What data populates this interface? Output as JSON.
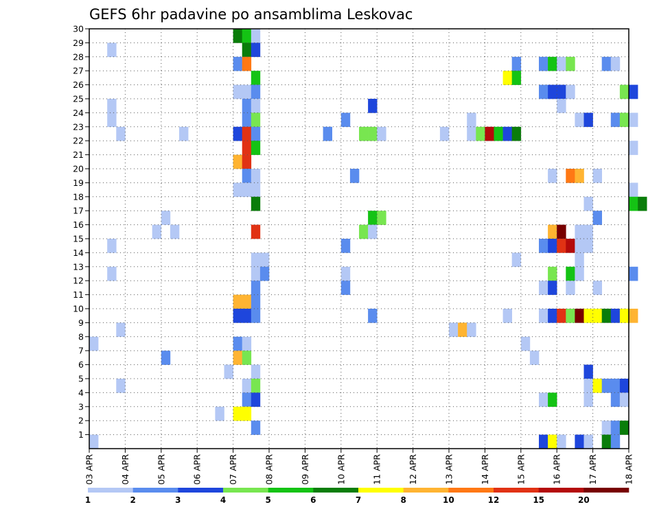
{
  "chart_data": {
    "type": "heatmap",
    "title": "GEFS 6hr padavine po ansamblima Leskovac",
    "xlabel": "",
    "ylabel": "",
    "x_ticks": [
      "03 APR",
      "04 APR",
      "05 APR",
      "06 APR",
      "07 APR",
      "08 APR",
      "09 APR",
      "10 APR",
      "11 APR",
      "12 APR",
      "13 APR",
      "14 APR",
      "15 APR",
      "16 APR",
      "17 APR",
      "18 APR"
    ],
    "y_ticks": [
      "1",
      "2",
      "3",
      "4",
      "5",
      "6",
      "7",
      "8",
      "9",
      "10",
      "11",
      "12",
      "13",
      "14",
      "15",
      "16",
      "17",
      "18",
      "19",
      "20",
      "21",
      "22",
      "23",
      "24",
      "25",
      "26",
      "27",
      "28",
      "29",
      "30"
    ],
    "x_range": [
      "03 APR 00z",
      "18 APR 00z"
    ],
    "x_step_hours": 6,
    "y_range": [
      0,
      30
    ],
    "grid": true,
    "legend_placement": "bottom",
    "legend": {
      "labels": [
        "1",
        "2",
        "3",
        "4",
        "5",
        "6",
        "7",
        "8",
        "10",
        "12",
        "15",
        "20"
      ],
      "colors": [
        "#b4c8f5",
        "#5a8cee",
        "#1e46dc",
        "#78e650",
        "#14c314",
        "#0a7d0a",
        "#ffff00",
        "#ffb432",
        "#ff7814",
        "#e13214",
        "#b40a0a",
        "#780000"
      ]
    },
    "cells": [
      {
        "member": 30,
        "t": "07 APR 00z",
        "level": 6
      },
      {
        "member": 30,
        "t": "07 APR 06z",
        "level": 5
      },
      {
        "member": 30,
        "t": "07 APR 12z",
        "level": 1
      },
      {
        "member": 29,
        "t": "03 APR 12z",
        "level": 1
      },
      {
        "member": 29,
        "t": "07 APR 06z",
        "level": 6
      },
      {
        "member": 29,
        "t": "07 APR 12z",
        "level": 3
      },
      {
        "member": 28,
        "t": "07 APR 00z",
        "level": 2
      },
      {
        "member": 28,
        "t": "07 APR 06z",
        "level": 9
      },
      {
        "member": 28,
        "t": "14 APR 18z",
        "level": 2
      },
      {
        "member": 28,
        "t": "15 APR 12z",
        "level": 2
      },
      {
        "member": 28,
        "t": "15 APR 18z",
        "level": 5
      },
      {
        "member": 28,
        "t": "16 APR 00z",
        "level": 1
      },
      {
        "member": 28,
        "t": "16 APR 06z",
        "level": 4
      },
      {
        "member": 28,
        "t": "17 APR 06z",
        "level": 2
      },
      {
        "member": 28,
        "t": "17 APR 12z",
        "level": 1
      },
      {
        "member": 27,
        "t": "07 APR 12z",
        "level": 5
      },
      {
        "member": 27,
        "t": "14 APR 12z",
        "level": 7
      },
      {
        "member": 27,
        "t": "14 APR 18z",
        "level": 5
      },
      {
        "member": 26,
        "t": "07 APR 00z",
        "level": 1
      },
      {
        "member": 26,
        "t": "07 APR 06z",
        "level": 1
      },
      {
        "member": 26,
        "t": "07 APR 12z",
        "level": 2
      },
      {
        "member": 26,
        "t": "15 APR 12z",
        "level": 2
      },
      {
        "member": 26,
        "t": "15 APR 18z",
        "level": 3
      },
      {
        "member": 26,
        "t": "16 APR 00z",
        "level": 3
      },
      {
        "member": 26,
        "t": "16 APR 06z",
        "level": 1
      },
      {
        "member": 26,
        "t": "17 APR 18z",
        "level": 4
      },
      {
        "member": 26,
        "t": "18 APR 00z",
        "level": 3
      },
      {
        "member": 25,
        "t": "03 APR 12z",
        "level": 1
      },
      {
        "member": 25,
        "t": "07 APR 06z",
        "level": 2
      },
      {
        "member": 25,
        "t": "07 APR 12z",
        "level": 1
      },
      {
        "member": 25,
        "t": "10 APR 18z",
        "level": 3
      },
      {
        "member": 25,
        "t": "16 APR 00z",
        "level": 1
      },
      {
        "member": 24,
        "t": "03 APR 12z",
        "level": 1
      },
      {
        "member": 24,
        "t": "07 APR 06z",
        "level": 2
      },
      {
        "member": 24,
        "t": "07 APR 12z",
        "level": 4
      },
      {
        "member": 24,
        "t": "10 APR 00z",
        "level": 2
      },
      {
        "member": 24,
        "t": "13 APR 12z",
        "level": 1
      },
      {
        "member": 24,
        "t": "16 APR 12z",
        "level": 1
      },
      {
        "member": 24,
        "t": "16 APR 18z",
        "level": 3
      },
      {
        "member": 24,
        "t": "17 APR 12z",
        "level": 2
      },
      {
        "member": 24,
        "t": "17 APR 18z",
        "level": 4
      },
      {
        "member": 24,
        "t": "18 APR 00z",
        "level": 1
      },
      {
        "member": 23,
        "t": "03 APR 18z",
        "level": 1
      },
      {
        "member": 23,
        "t": "05 APR 12z",
        "level": 1
      },
      {
        "member": 23,
        "t": "07 APR 00z",
        "level": 3
      },
      {
        "member": 23,
        "t": "07 APR 06z",
        "level": 10
      },
      {
        "member": 23,
        "t": "07 APR 12z",
        "level": 2
      },
      {
        "member": 23,
        "t": "09 APR 12z",
        "level": 2
      },
      {
        "member": 23,
        "t": "10 APR 12z",
        "level": 4
      },
      {
        "member": 23,
        "t": "10 APR 18z",
        "level": 4
      },
      {
        "member": 23,
        "t": "11 APR 00z",
        "level": 1
      },
      {
        "member": 23,
        "t": "12 APR 18z",
        "level": 1
      },
      {
        "member": 23,
        "t": "13 APR 12z",
        "level": 1
      },
      {
        "member": 23,
        "t": "13 APR 18z",
        "level": 4
      },
      {
        "member": 23,
        "t": "14 APR 00z",
        "level": 11
      },
      {
        "member": 23,
        "t": "14 APR 06z",
        "level": 5
      },
      {
        "member": 23,
        "t": "14 APR 12z",
        "level": 3
      },
      {
        "member": 23,
        "t": "14 APR 18z",
        "level": 6
      },
      {
        "member": 22,
        "t": "07 APR 06z",
        "level": 10
      },
      {
        "member": 22,
        "t": "07 APR 12z",
        "level": 5
      },
      {
        "member": 22,
        "t": "18 APR 00z",
        "level": 1
      },
      {
        "member": 21,
        "t": "07 APR 00z",
        "level": 8
      },
      {
        "member": 21,
        "t": "07 APR 06z",
        "level": 10
      },
      {
        "member": 20,
        "t": "07 APR 06z",
        "level": 2
      },
      {
        "member": 20,
        "t": "07 APR 12z",
        "level": 1
      },
      {
        "member": 20,
        "t": "10 APR 06z",
        "level": 2
      },
      {
        "member": 20,
        "t": "15 APR 18z",
        "level": 1
      },
      {
        "member": 20,
        "t": "16 APR 06z",
        "level": 9
      },
      {
        "member": 20,
        "t": "16 APR 12z",
        "level": 8
      },
      {
        "member": 20,
        "t": "17 APR 00z",
        "level": 1
      },
      {
        "member": 19,
        "t": "07 APR 00z",
        "level": 1
      },
      {
        "member": 19,
        "t": "07 APR 06z",
        "level": 1
      },
      {
        "member": 19,
        "t": "07 APR 12z",
        "level": 1
      },
      {
        "member": 19,
        "t": "18 APR 00z",
        "level": 1
      },
      {
        "member": 18,
        "t": "07 APR 12z",
        "level": 6
      },
      {
        "member": 18,
        "t": "16 APR 18z",
        "level": 1
      },
      {
        "member": 18,
        "t": "18 APR 00z",
        "level": 5
      },
      {
        "member": 18,
        "t": "18 APR 06z",
        "level": 6
      },
      {
        "member": 17,
        "t": "05 APR 00z",
        "level": 1
      },
      {
        "member": 17,
        "t": "10 APR 18z",
        "level": 5
      },
      {
        "member": 17,
        "t": "11 APR 00z",
        "level": 4
      },
      {
        "member": 17,
        "t": "17 APR 00z",
        "level": 2
      },
      {
        "member": 16,
        "t": "04 APR 18z",
        "level": 1
      },
      {
        "member": 16,
        "t": "05 APR 06z",
        "level": 1
      },
      {
        "member": 16,
        "t": "07 APR 12z",
        "level": 10
      },
      {
        "member": 16,
        "t": "10 APR 12z",
        "level": 4
      },
      {
        "member": 16,
        "t": "10 APR 18z",
        "level": 1
      },
      {
        "member": 16,
        "t": "15 APR 18z",
        "level": 8
      },
      {
        "member": 16,
        "t": "16 APR 00z",
        "level": 12
      },
      {
        "member": 16,
        "t": "16 APR 12z",
        "level": 1
      },
      {
        "member": 16,
        "t": "16 APR 18z",
        "level": 1
      },
      {
        "member": 15,
        "t": "03 APR 12z",
        "level": 1
      },
      {
        "member": 15,
        "t": "10 APR 00z",
        "level": 2
      },
      {
        "member": 15,
        "t": "15 APR 12z",
        "level": 2
      },
      {
        "member": 15,
        "t": "15 APR 18z",
        "level": 3
      },
      {
        "member": 15,
        "t": "16 APR 00z",
        "level": 10
      },
      {
        "member": 15,
        "t": "16 APR 06z",
        "level": 11
      },
      {
        "member": 15,
        "t": "16 APR 12z",
        "level": 1
      },
      {
        "member": 15,
        "t": "16 APR 18z",
        "level": 1
      },
      {
        "member": 14,
        "t": "07 APR 12z",
        "level": 1
      },
      {
        "member": 14,
        "t": "07 APR 18z",
        "level": 1
      },
      {
        "member": 14,
        "t": "14 APR 18z",
        "level": 1
      },
      {
        "member": 14,
        "t": "16 APR 12z",
        "level": 1
      },
      {
        "member": 13,
        "t": "03 APR 12z",
        "level": 1
      },
      {
        "member": 13,
        "t": "07 APR 12z",
        "level": 1
      },
      {
        "member": 13,
        "t": "07 APR 18z",
        "level": 2
      },
      {
        "member": 13,
        "t": "10 APR 00z",
        "level": 1
      },
      {
        "member": 13,
        "t": "15 APR 18z",
        "level": 4
      },
      {
        "member": 13,
        "t": "16 APR 06z",
        "level": 5
      },
      {
        "member": 13,
        "t": "16 APR 12z",
        "level": 1
      },
      {
        "member": 13,
        "t": "18 APR 00z",
        "level": 2
      },
      {
        "member": 12,
        "t": "07 APR 12z",
        "level": 2
      },
      {
        "member": 12,
        "t": "10 APR 00z",
        "level": 2
      },
      {
        "member": 12,
        "t": "15 APR 12z",
        "level": 1
      },
      {
        "member": 12,
        "t": "15 APR 18z",
        "level": 3
      },
      {
        "member": 12,
        "t": "16 APR 06z",
        "level": 1
      },
      {
        "member": 12,
        "t": "17 APR 00z",
        "level": 1
      },
      {
        "member": 11,
        "t": "07 APR 00z",
        "level": 8
      },
      {
        "member": 11,
        "t": "07 APR 06z",
        "level": 8
      },
      {
        "member": 11,
        "t": "07 APR 12z",
        "level": 2
      },
      {
        "member": 10,
        "t": "07 APR 00z",
        "level": 3
      },
      {
        "member": 10,
        "t": "07 APR 06z",
        "level": 3
      },
      {
        "member": 10,
        "t": "07 APR 12z",
        "level": 2
      },
      {
        "member": 10,
        "t": "10 APR 18z",
        "level": 2
      },
      {
        "member": 10,
        "t": "14 APR 12z",
        "level": 1
      },
      {
        "member": 10,
        "t": "15 APR 12z",
        "level": 1
      },
      {
        "member": 10,
        "t": "15 APR 18z",
        "level": 3
      },
      {
        "member": 10,
        "t": "16 APR 00z",
        "level": 10
      },
      {
        "member": 10,
        "t": "16 APR 06z",
        "level": 4
      },
      {
        "member": 10,
        "t": "16 APR 12z",
        "level": 12
      },
      {
        "member": 10,
        "t": "16 APR 18z",
        "level": 7
      },
      {
        "member": 10,
        "t": "17 APR 00z",
        "level": 7
      },
      {
        "member": 10,
        "t": "17 APR 06z",
        "level": 6
      },
      {
        "member": 10,
        "t": "17 APR 12z",
        "level": 3
      },
      {
        "member": 10,
        "t": "17 APR 18z",
        "level": 7
      },
      {
        "member": 10,
        "t": "18 APR 00z",
        "level": 8
      },
      {
        "member": 9,
        "t": "03 APR 18z",
        "level": 1
      },
      {
        "member": 9,
        "t": "13 APR 00z",
        "level": 1
      },
      {
        "member": 9,
        "t": "13 APR 06z",
        "level": 8
      },
      {
        "member": 9,
        "t": "13 APR 12z",
        "level": 1
      },
      {
        "member": 8,
        "t": "03 APR 00z",
        "level": 1
      },
      {
        "member": 8,
        "t": "07 APR 00z",
        "level": 2
      },
      {
        "member": 8,
        "t": "07 APR 06z",
        "level": 1
      },
      {
        "member": 8,
        "t": "15 APR 00z",
        "level": 1
      },
      {
        "member": 7,
        "t": "05 APR 00z",
        "level": 2
      },
      {
        "member": 7,
        "t": "07 APR 00z",
        "level": 8
      },
      {
        "member": 7,
        "t": "07 APR 06z",
        "level": 4
      },
      {
        "member": 7,
        "t": "15 APR 06z",
        "level": 1
      },
      {
        "member": 6,
        "t": "06 APR 18z",
        "level": 1
      },
      {
        "member": 6,
        "t": "07 APR 12z",
        "level": 1
      },
      {
        "member": 6,
        "t": "16 APR 18z",
        "level": 3
      },
      {
        "member": 5,
        "t": "03 APR 18z",
        "level": 1
      },
      {
        "member": 5,
        "t": "07 APR 06z",
        "level": 1
      },
      {
        "member": 5,
        "t": "07 APR 12z",
        "level": 4
      },
      {
        "member": 5,
        "t": "16 APR 18z",
        "level": 1
      },
      {
        "member": 5,
        "t": "17 APR 00z",
        "level": 7
      },
      {
        "member": 5,
        "t": "17 APR 06z",
        "level": 2
      },
      {
        "member": 5,
        "t": "17 APR 12z",
        "level": 2
      },
      {
        "member": 5,
        "t": "17 APR 18z",
        "level": 3
      },
      {
        "member": 4,
        "t": "07 APR 06z",
        "level": 2
      },
      {
        "member": 4,
        "t": "07 APR 12z",
        "level": 3
      },
      {
        "member": 4,
        "t": "15 APR 12z",
        "level": 1
      },
      {
        "member": 4,
        "t": "15 APR 18z",
        "level": 5
      },
      {
        "member": 4,
        "t": "16 APR 18z",
        "level": 1
      },
      {
        "member": 4,
        "t": "17 APR 12z",
        "level": 2
      },
      {
        "member": 4,
        "t": "17 APR 18z",
        "level": 1
      },
      {
        "member": 3,
        "t": "06 APR 12z",
        "level": 1
      },
      {
        "member": 3,
        "t": "07 APR 00z",
        "level": 7
      },
      {
        "member": 3,
        "t": "07 APR 06z",
        "level": 7
      },
      {
        "member": 2,
        "t": "07 APR 12z",
        "level": 2
      },
      {
        "member": 2,
        "t": "17 APR 06z",
        "level": 1
      },
      {
        "member": 2,
        "t": "17 APR 12z",
        "level": 2
      },
      {
        "member": 2,
        "t": "17 APR 18z",
        "level": 6
      },
      {
        "member": 1,
        "t": "03 APR 00z",
        "level": 1
      },
      {
        "member": 1,
        "t": "15 APR 12z",
        "level": 3
      },
      {
        "member": 1,
        "t": "15 APR 18z",
        "level": 7
      },
      {
        "member": 1,
        "t": "16 APR 00z",
        "level": 1
      },
      {
        "member": 1,
        "t": "16 APR 12z",
        "level": 3
      },
      {
        "member": 1,
        "t": "16 APR 18z",
        "level": 1
      },
      {
        "member": 1,
        "t": "17 APR 06z",
        "level": 6
      },
      {
        "member": 1,
        "t": "17 APR 12z",
        "level": 2
      }
    ]
  }
}
